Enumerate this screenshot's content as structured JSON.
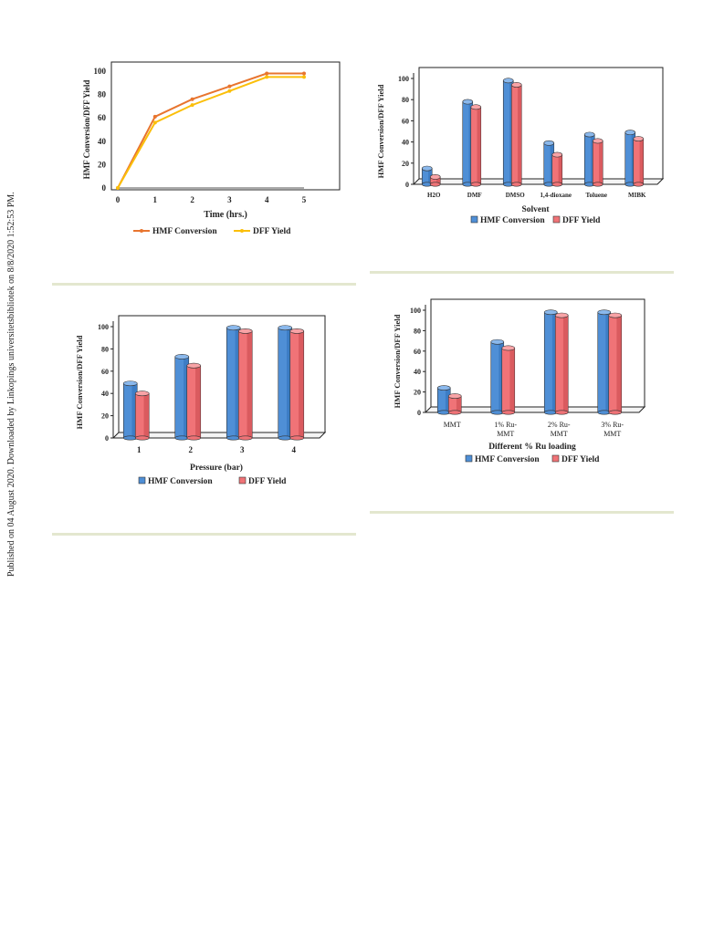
{
  "watermark": "Published on 04 August 2020. Downloaded by Linkopings universitetsbibliotek on 8/8/2020 1:52:53 PM.",
  "colors": {
    "hmf_line": "#e8752f",
    "dff_line": "#fbbf0a",
    "hmf_bar": "#4f8fd6",
    "dff_bar": "#f07377"
  },
  "chart_data": [
    {
      "type": "line",
      "title": "",
      "xlabel": "Time (hrs.)",
      "ylabel": "HMF Conversion/DFF Yield",
      "x": [
        0,
        1,
        2,
        3,
        4,
        5
      ],
      "x_ticks": [
        "0",
        "1",
        "2",
        "3",
        "4",
        "5"
      ],
      "y_ticks": [
        "0",
        "20",
        "40",
        "60",
        "80",
        "100"
      ],
      "ylim": [
        0,
        100
      ],
      "series": [
        {
          "name": "HMF Conversion",
          "values": [
            0,
            61,
            76,
            87,
            98,
            98
          ]
        },
        {
          "name": "DFF Yield",
          "values": [
            0,
            56,
            71,
            83,
            95,
            95
          ]
        }
      ],
      "legend": "bottom"
    },
    {
      "type": "bar",
      "title": "",
      "xlabel": "Solvent",
      "ylabel": "HMF Conversion/DFF Yield",
      "categories": [
        "H2O",
        "DMF",
        "DMSO",
        "1,4-dioxane",
        "Toluene",
        "MIBK"
      ],
      "y_ticks": [
        "0",
        "20",
        "40",
        "60",
        "80",
        "100"
      ],
      "ylim": [
        0,
        100
      ],
      "series": [
        {
          "name": "HMF Conversion",
          "values": [
            15,
            78,
            98,
            39,
            47,
            49
          ]
        },
        {
          "name": "DFF Yield",
          "values": [
            7,
            73,
            94,
            28,
            41,
            43
          ]
        }
      ],
      "legend": "bottom"
    },
    {
      "type": "bar",
      "title": "",
      "xlabel": "Pressure (bar)",
      "ylabel": "HMF Conversion/DFF Yield",
      "categories": [
        "1",
        "2",
        "3",
        "4"
      ],
      "y_ticks": [
        "0",
        "20",
        "40",
        "60",
        "80",
        "100"
      ],
      "ylim": [
        0,
        100
      ],
      "series": [
        {
          "name": "HMF Conversion",
          "values": [
            49,
            73,
            99,
            99
          ]
        },
        {
          "name": "DFF Yield",
          "values": [
            40,
            65,
            96,
            96
          ]
        }
      ],
      "legend": "bottom"
    },
    {
      "type": "bar",
      "title": "",
      "xlabel": "Different % Ru loading",
      "ylabel": "HMF Conversion/DFF Yield",
      "categories": [
        [
          "MMT"
        ],
        [
          "1% Ru-",
          "MMT"
        ],
        [
          "2% Ru-",
          "MMT"
        ],
        [
          "3% Ru-",
          "MMT"
        ]
      ],
      "y_ticks": [
        "0",
        "20",
        "40",
        "60",
        "80",
        "100"
      ],
      "ylim": [
        0,
        100
      ],
      "series": [
        {
          "name": "HMF Conversion",
          "values": [
            24,
            69,
            98,
            98
          ]
        },
        {
          "name": "DFF Yield",
          "values": [
            16,
            63,
            95,
            95
          ]
        }
      ],
      "legend": "bottom"
    }
  ]
}
